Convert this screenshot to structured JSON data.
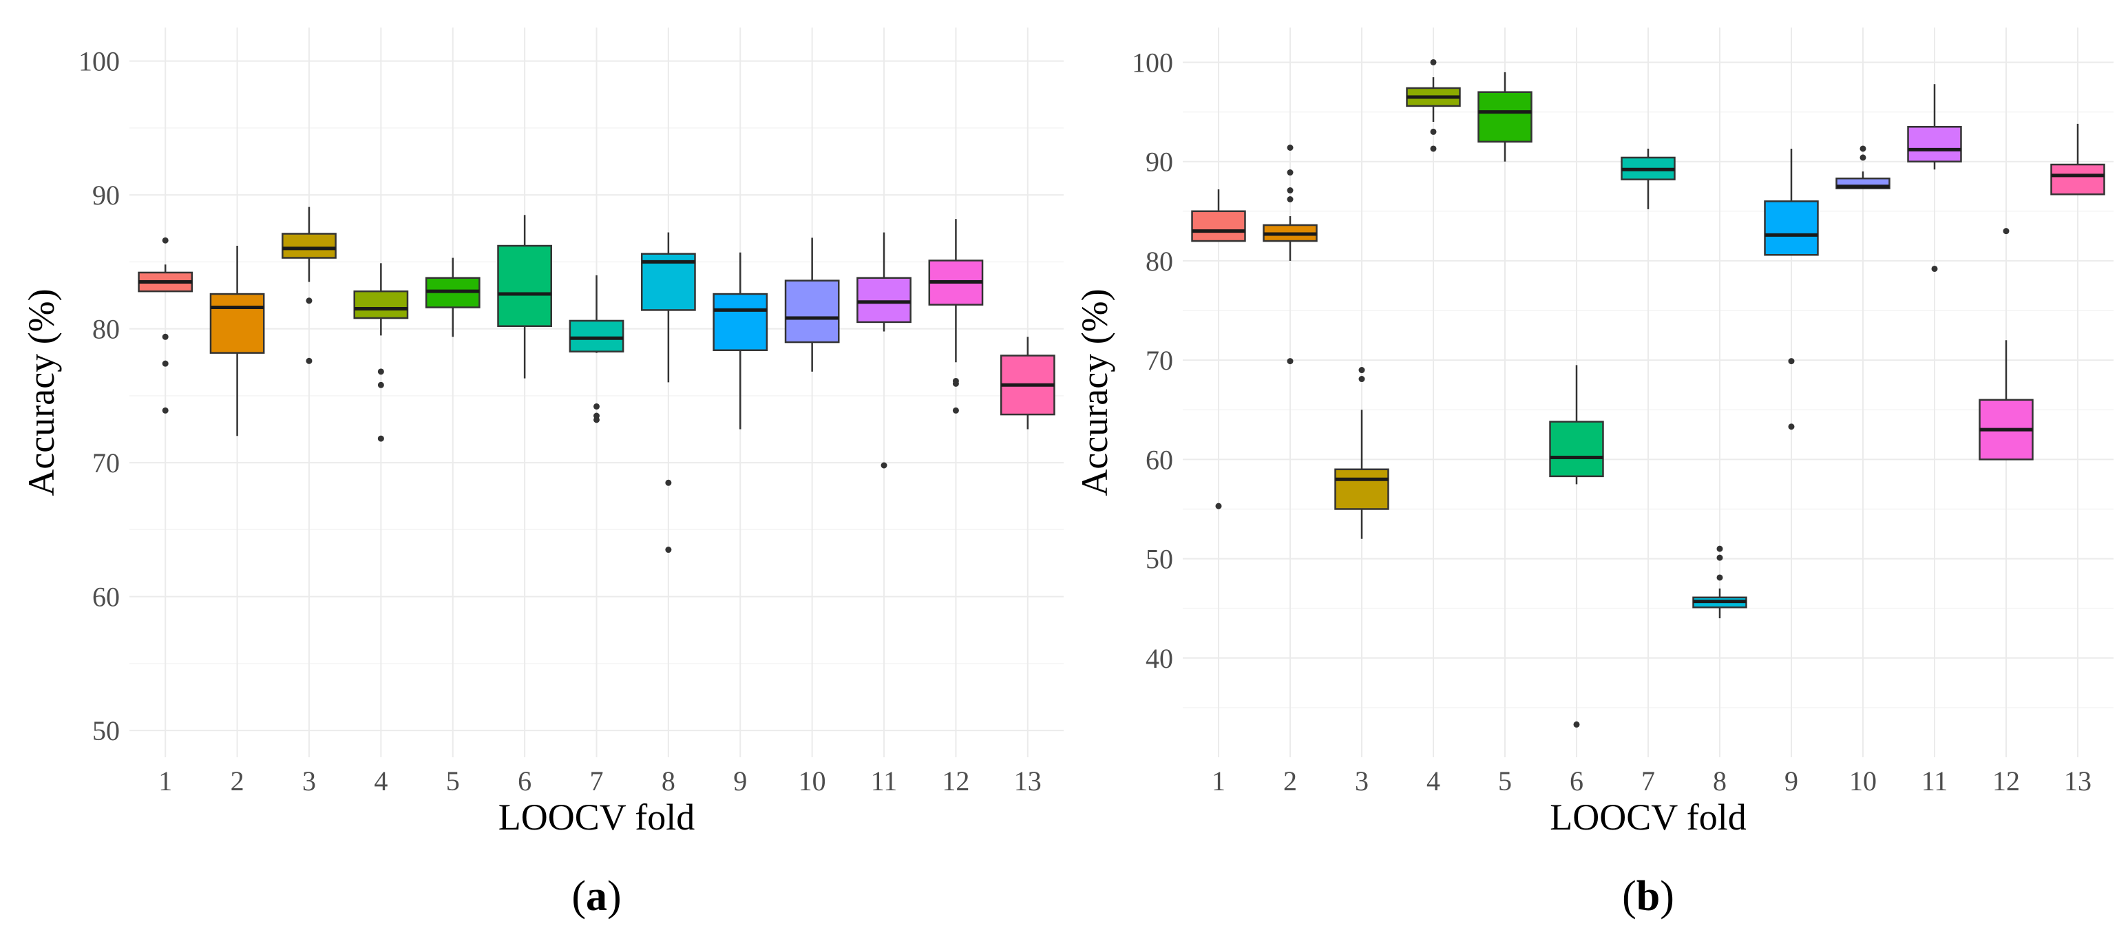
{
  "figure": {
    "panel_labels": [
      "(a)",
      "(b)"
    ]
  },
  "chart_data": [
    {
      "type": "box",
      "panel": "(a)",
      "title": "",
      "xlabel": "LOOCV fold",
      "ylabel": "Accuracy (%)",
      "ylim": [
        48,
        102.5
      ],
      "yticks": [
        50,
        60,
        70,
        80,
        90,
        100
      ],
      "categories": [
        "1",
        "2",
        "3",
        "4",
        "5",
        "6",
        "7",
        "8",
        "9",
        "10",
        "11",
        "12",
        "13"
      ],
      "colors": [
        "#F8766D",
        "#E18A00",
        "#BE9C00",
        "#8CAB00",
        "#24B700",
        "#00BE70",
        "#00C1AB",
        "#00BBDA",
        "#00ACFC",
        "#8B93FF",
        "#D575FE",
        "#F962DD",
        "#FF65AC"
      ],
      "boxes": [
        {
          "fold": "1",
          "whisker_low": 82.8,
          "q1": 82.8,
          "median": 83.5,
          "q3": 84.2,
          "whisker_high": 84.8,
          "outliers": [
            86.6,
            79.4,
            77.4,
            73.9
          ]
        },
        {
          "fold": "2",
          "whisker_low": 72.0,
          "q1": 78.2,
          "median": 81.6,
          "q3": 82.6,
          "whisker_high": 86.2,
          "outliers": []
        },
        {
          "fold": "3",
          "whisker_low": 83.5,
          "q1": 85.3,
          "median": 86.0,
          "q3": 87.1,
          "whisker_high": 89.1,
          "outliers": [
            82.1,
            77.6
          ]
        },
        {
          "fold": "4",
          "whisker_low": 79.5,
          "q1": 80.8,
          "median": 81.5,
          "q3": 82.8,
          "whisker_high": 84.9,
          "outliers": [
            76.8,
            75.8,
            71.8
          ]
        },
        {
          "fold": "5",
          "whisker_low": 79.4,
          "q1": 81.6,
          "median": 82.8,
          "q3": 83.8,
          "whisker_high": 85.3,
          "outliers": []
        },
        {
          "fold": "6",
          "whisker_low": 76.3,
          "q1": 80.2,
          "median": 82.6,
          "q3": 86.2,
          "whisker_high": 88.5,
          "outliers": []
        },
        {
          "fold": "7",
          "whisker_low": 78.2,
          "q1": 78.3,
          "median": 79.3,
          "q3": 80.6,
          "whisker_high": 84.0,
          "outliers": [
            74.2,
            73.5,
            73.2
          ]
        },
        {
          "fold": "8",
          "whisker_low": 76.0,
          "q1": 81.4,
          "median": 85.0,
          "q3": 85.6,
          "whisker_high": 87.2,
          "outliers": [
            68.5,
            63.5
          ]
        },
        {
          "fold": "9",
          "whisker_low": 72.5,
          "q1": 78.4,
          "median": 81.4,
          "q3": 82.6,
          "whisker_high": 85.7,
          "outliers": []
        },
        {
          "fold": "10",
          "whisker_low": 76.8,
          "q1": 79.0,
          "median": 80.8,
          "q3": 83.6,
          "whisker_high": 86.8,
          "outliers": []
        },
        {
          "fold": "11",
          "whisker_low": 79.8,
          "q1": 80.5,
          "median": 82.0,
          "q3": 83.8,
          "whisker_high": 87.2,
          "outliers": [
            69.8
          ]
        },
        {
          "fold": "12",
          "whisker_low": 77.5,
          "q1": 81.8,
          "median": 83.5,
          "q3": 85.1,
          "whisker_high": 88.2,
          "outliers": [
            76.1,
            75.9,
            73.9
          ]
        },
        {
          "fold": "13",
          "whisker_low": 72.5,
          "q1": 73.6,
          "median": 75.8,
          "q3": 78.0,
          "whisker_high": 79.4,
          "outliers": []
        }
      ]
    },
    {
      "type": "box",
      "panel": "(b)",
      "title": "",
      "xlabel": "LOOCV fold",
      "ylabel": "Accuracy (%)",
      "ylim": [
        30,
        103.5
      ],
      "yticks": [
        40,
        50,
        60,
        70,
        80,
        90,
        100
      ],
      "categories": [
        "1",
        "2",
        "3",
        "4",
        "5",
        "6",
        "7",
        "8",
        "9",
        "10",
        "11",
        "12",
        "13"
      ],
      "colors": [
        "#F8766D",
        "#E18A00",
        "#BE9C00",
        "#8CAB00",
        "#24B700",
        "#00BE70",
        "#00C1AB",
        "#00BBDA",
        "#00ACFC",
        "#8B93FF",
        "#D575FE",
        "#F962DD",
        "#FF65AC"
      ],
      "boxes": [
        {
          "fold": "1",
          "whisker_low": 82.0,
          "q1": 82.0,
          "median": 83.0,
          "q3": 85.0,
          "whisker_high": 87.2,
          "outliers": [
            55.3
          ]
        },
        {
          "fold": "2",
          "whisker_low": 80.0,
          "q1": 82.0,
          "median": 82.7,
          "q3": 83.6,
          "whisker_high": 84.5,
          "outliers": [
            91.4,
            88.9,
            87.1,
            86.2,
            69.9
          ]
        },
        {
          "fold": "3",
          "whisker_low": 52.0,
          "q1": 55.0,
          "median": 58.0,
          "q3": 59.0,
          "whisker_high": 65.0,
          "outliers": [
            69.0,
            68.1
          ]
        },
        {
          "fold": "4",
          "whisker_low": 94.0,
          "q1": 95.6,
          "median": 96.5,
          "q3": 97.4,
          "whisker_high": 98.5,
          "outliers": [
            100.0,
            93.0,
            91.3
          ]
        },
        {
          "fold": "5",
          "whisker_low": 90.0,
          "q1": 92.0,
          "median": 95.0,
          "q3": 97.0,
          "whisker_high": 99.0,
          "outliers": []
        },
        {
          "fold": "6",
          "whisker_low": 57.5,
          "q1": 58.3,
          "median": 60.2,
          "q3": 63.8,
          "whisker_high": 69.5,
          "outliers": [
            33.3
          ]
        },
        {
          "fold": "7",
          "whisker_low": 85.2,
          "q1": 88.2,
          "median": 89.2,
          "q3": 90.4,
          "whisker_high": 91.3,
          "outliers": []
        },
        {
          "fold": "8",
          "whisker_low": 44.0,
          "q1": 45.1,
          "median": 45.7,
          "q3": 46.1,
          "whisker_high": 47.0,
          "outliers": [
            51.0,
            50.1,
            48.1
          ]
        },
        {
          "fold": "9",
          "whisker_low": 80.6,
          "q1": 80.6,
          "median": 82.6,
          "q3": 86.0,
          "whisker_high": 91.3,
          "outliers": [
            69.9,
            63.3
          ]
        },
        {
          "fold": "10",
          "whisker_low": 87.3,
          "q1": 87.3,
          "median": 87.5,
          "q3": 88.3,
          "whisker_high": 89.0,
          "outliers": [
            91.3,
            90.4
          ]
        },
        {
          "fold": "11",
          "whisker_low": 89.2,
          "q1": 90.0,
          "median": 91.2,
          "q3": 93.5,
          "whisker_high": 97.8,
          "outliers": [
            79.2
          ]
        },
        {
          "fold": "12",
          "whisker_low": 60.0,
          "q1": 60.0,
          "median": 63.0,
          "q3": 66.0,
          "whisker_high": 72.0,
          "outliers": [
            83.0
          ]
        },
        {
          "fold": "13",
          "whisker_low": 86.7,
          "q1": 86.7,
          "median": 88.6,
          "q3": 89.7,
          "whisker_high": 93.8,
          "outliers": []
        }
      ]
    }
  ]
}
